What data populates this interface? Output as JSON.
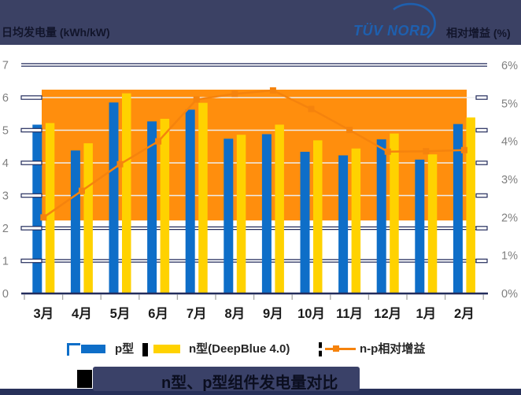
{
  "header": {
    "left_label": "日均发电量 (kWh/kW)",
    "logo_text": "TÜV NORD",
    "right_label": "相对增益 (%)"
  },
  "legend": {
    "p_label": "p型",
    "n_label": "n型(DeepBlue 4.0)",
    "gain_label": "n-p相对增益"
  },
  "title": "n型、p型组件发电量对比",
  "colors": {
    "header_bg": "#3B4164",
    "logo_blue": "#1E5FAE",
    "bar_blue": "#0E6EC8",
    "bar_yellow": "#FFD200",
    "band_orange": "#FF8E0D",
    "line_orange": "#F5830D",
    "grid_navy": "#232C5C",
    "grid_light": "#EDEDED",
    "axis_label_gray": "#7F7F7F",
    "month_label_dark": "#1A1A1A",
    "tick_gray": "#A6A6A6"
  },
  "chart_data": {
    "type": "bar",
    "subtype": "grouped-bars-with-line-and-band",
    "categories": [
      "3月",
      "4月",
      "5月",
      "6月",
      "7月",
      "8月",
      "9月",
      "10月",
      "11月",
      "12月",
      "1月",
      "2月"
    ],
    "series": [
      {
        "name": "p型",
        "type": "bar",
        "axis": "left",
        "values": [
          5.17,
          4.38,
          5.85,
          5.27,
          5.63,
          4.74,
          4.88,
          4.34,
          4.23,
          4.72,
          4.1,
          5.19
        ]
      },
      {
        "name": "n型(DeepBlue 4.0)",
        "type": "bar",
        "axis": "left",
        "values": [
          5.22,
          4.6,
          6.13,
          5.35,
          5.84,
          4.86,
          5.17,
          4.69,
          4.44,
          4.9,
          4.26,
          5.39
        ]
      },
      {
        "name": "n-p相对增益",
        "type": "line",
        "axis": "right",
        "unit": "%",
        "values": [
          2.0,
          2.7,
          3.4,
          4.0,
          5.1,
          5.25,
          5.34,
          4.85,
          4.3,
          3.73,
          3.74,
          3.77
        ]
      }
    ],
    "left_axis": {
      "title": "日均发电量 (kWh/kW)",
      "min": 0,
      "max": 7,
      "tick_labels": [
        "0",
        "1",
        "2",
        "3",
        "4",
        "5",
        "6",
        "7"
      ]
    },
    "right_axis": {
      "title": "相对增益 (%)",
      "min": 0,
      "max": 6,
      "tick_labels": [
        "0%",
        "1%",
        "2%",
        "3%",
        "4%",
        "5%",
        "6%"
      ]
    },
    "band": {
      "from_category": "3月",
      "to_category": "2月",
      "bottom_pct": 1.92,
      "top_pct": 5.36,
      "note": "orange highlight area behind bars"
    },
    "grid": {
      "navy_levels": [
        7,
        2,
        1,
        0
      ],
      "light_levels": [
        6,
        5,
        4,
        3
      ]
    },
    "legend_position": "bottom"
  }
}
